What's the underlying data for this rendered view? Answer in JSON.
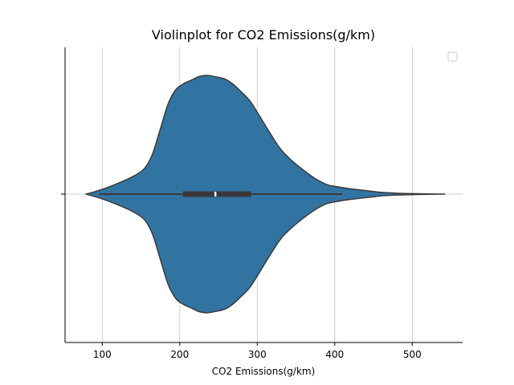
{
  "chart_data": {
    "type": "violin",
    "title": "Violinplot for CO2 Emissions(g/km)",
    "xlabel": "CO2 Emissions(g/km)",
    "ylabel": "",
    "xlim": [
      52,
      565
    ],
    "xticks": [
      100,
      200,
      300,
      400,
      500
    ],
    "grid": "x",
    "legend": {
      "position": "top-right",
      "entries": []
    },
    "colors": {
      "fill": "#3274a1",
      "edge": "#3a3a3a",
      "box": "#3a3a3a",
      "median": "#ffffff",
      "grid": "#cccccc"
    },
    "violin": {
      "min": 79,
      "max": 542,
      "q1": 204,
      "median": 246,
      "q3": 292,
      "whisker_low": 96,
      "whisker_high": 410,
      "density": [
        [
          79,
          0.0
        ],
        [
          90,
          0.02
        ],
        [
          100,
          0.04
        ],
        [
          120,
          0.09
        ],
        [
          140,
          0.15
        ],
        [
          155,
          0.22
        ],
        [
          165,
          0.34
        ],
        [
          175,
          0.55
        ],
        [
          185,
          0.76
        ],
        [
          195,
          0.88
        ],
        [
          205,
          0.93
        ],
        [
          215,
          0.96
        ],
        [
          225,
          0.99
        ],
        [
          235,
          1.0
        ],
        [
          245,
          0.99
        ],
        [
          258,
          0.97
        ],
        [
          268,
          0.93
        ],
        [
          278,
          0.87
        ],
        [
          290,
          0.79
        ],
        [
          300,
          0.69
        ],
        [
          315,
          0.53
        ],
        [
          330,
          0.38
        ],
        [
          345,
          0.28
        ],
        [
          360,
          0.2
        ],
        [
          375,
          0.13
        ],
        [
          390,
          0.08
        ],
        [
          405,
          0.06
        ],
        [
          420,
          0.045
        ],
        [
          440,
          0.03
        ],
        [
          460,
          0.015
        ],
        [
          480,
          0.008
        ],
        [
          500,
          0.004
        ],
        [
          520,
          0.002
        ],
        [
          542,
          0.0
        ]
      ]
    }
  }
}
